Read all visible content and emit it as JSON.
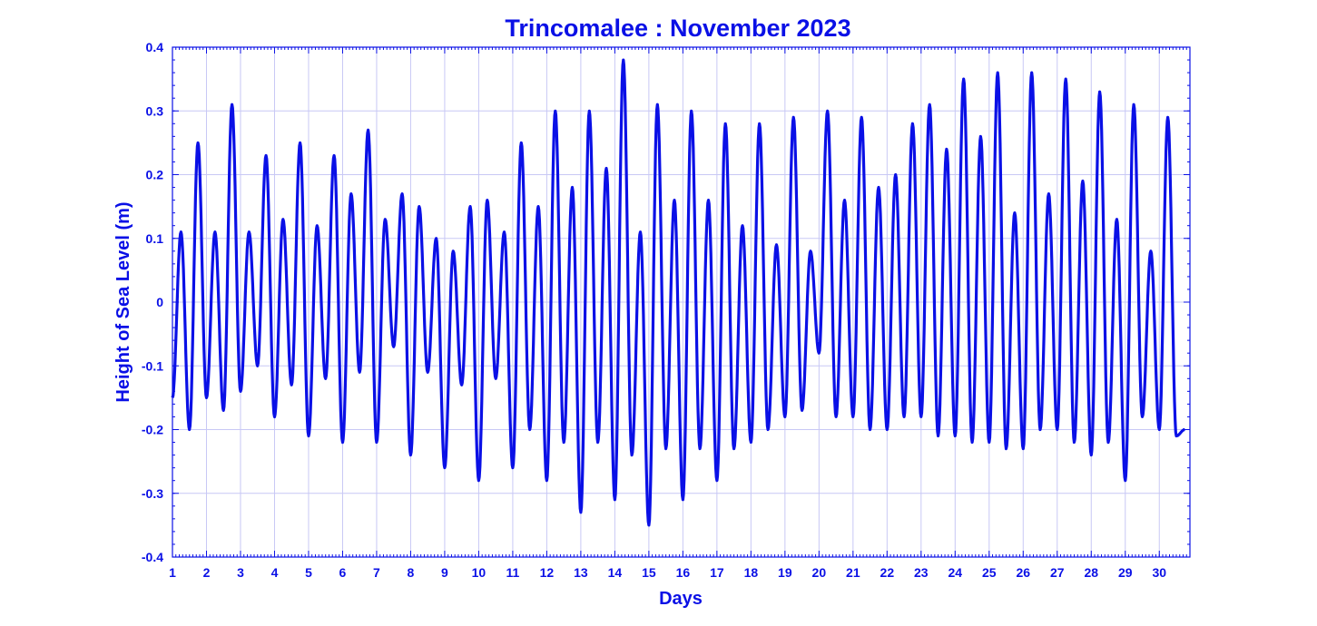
{
  "chart_data": {
    "type": "line",
    "title": "Trincomalee : November  2023",
    "xlabel": "Days",
    "ylabel": "Height of Sea Level (m)",
    "xlim": [
      1,
      30.9
    ],
    "ylim": [
      -0.4,
      0.4
    ],
    "xticks": [
      1,
      2,
      3,
      4,
      5,
      6,
      7,
      8,
      9,
      10,
      11,
      12,
      13,
      14,
      15,
      16,
      17,
      18,
      19,
      20,
      21,
      22,
      23,
      24,
      25,
      26,
      27,
      28,
      29,
      30
    ],
    "yticks": [
      -0.4,
      -0.3,
      -0.2,
      -0.1,
      0,
      0.1,
      0.2,
      0.3,
      0.4
    ],
    "ytick_labels": [
      "-0.4",
      "-0.3",
      "-0.2",
      "-0.1",
      "0",
      "0.1",
      "0.2",
      "0.3",
      "0.4"
    ],
    "grid": true,
    "line_color": "#0a10e6",
    "series": [
      {
        "x": [
          1.0,
          1.25,
          1.5,
          1.75,
          2.0,
          2.25,
          2.5,
          2.75,
          3.0,
          3.25,
          3.5,
          3.75,
          4.0,
          4.25,
          4.5,
          4.75,
          5.0,
          5.25,
          5.5,
          5.75,
          6.0,
          6.25,
          6.5,
          6.75,
          7.0,
          7.25,
          7.5,
          7.75,
          8.0,
          8.25,
          8.5,
          8.75,
          9.0,
          9.25,
          9.5,
          9.75,
          10.0,
          10.25,
          10.5,
          10.75,
          11.0,
          11.25,
          11.5,
          11.75,
          12.0,
          12.25,
          12.5,
          12.75,
          13.0,
          13.25,
          13.5,
          13.75,
          14.0,
          14.25,
          14.5,
          14.75,
          15.0,
          15.25,
          15.5,
          15.75,
          16.0,
          16.25,
          16.5,
          16.75,
          17.0,
          17.25,
          17.5,
          17.75,
          18.0,
          18.25,
          18.5,
          18.75,
          19.0,
          19.25,
          19.5,
          19.75,
          20.0,
          20.25,
          20.5,
          20.75,
          21.0,
          21.25,
          21.5,
          21.75,
          22.0,
          22.25,
          22.5,
          22.75,
          23.0,
          23.25,
          23.5,
          23.75,
          24.0,
          24.25,
          24.5,
          24.75,
          25.0,
          25.25,
          25.5,
          25.75,
          26.0,
          26.25,
          26.5,
          26.75,
          27.0,
          27.25,
          27.5,
          27.75,
          28.0,
          28.25,
          28.5,
          28.75,
          29.0,
          29.25,
          29.5,
          29.75,
          30.0,
          30.25,
          30.5,
          30.75
        ],
        "y": [
          -0.15,
          0.11,
          -0.2,
          0.25,
          -0.15,
          0.11,
          -0.17,
          0.31,
          -0.14,
          0.11,
          -0.1,
          0.23,
          -0.18,
          0.13,
          -0.13,
          0.25,
          -0.21,
          0.12,
          -0.12,
          0.23,
          -0.22,
          0.17,
          -0.11,
          0.27,
          -0.22,
          0.13,
          -0.07,
          0.17,
          -0.24,
          0.15,
          -0.11,
          0.1,
          -0.26,
          0.08,
          -0.13,
          0.15,
          -0.28,
          0.16,
          -0.12,
          0.11,
          -0.26,
          0.25,
          -0.2,
          0.15,
          -0.28,
          0.3,
          -0.22,
          0.18,
          -0.33,
          0.3,
          -0.22,
          0.21,
          -0.31,
          0.38,
          -0.24,
          0.11,
          -0.35,
          0.31,
          -0.23,
          0.16,
          -0.31,
          0.3,
          -0.23,
          0.16,
          -0.28,
          0.28,
          -0.23,
          0.12,
          -0.22,
          0.28,
          -0.2,
          0.09,
          -0.18,
          0.29,
          -0.17,
          0.08,
          -0.08,
          0.3,
          -0.18,
          0.16,
          -0.18,
          0.29,
          -0.2,
          0.18,
          -0.2,
          0.2,
          -0.18,
          0.28,
          -0.18,
          0.31,
          -0.21,
          0.24,
          -0.21,
          0.35,
          -0.22,
          0.26,
          -0.22,
          0.36,
          -0.23,
          0.14,
          -0.23,
          0.36,
          -0.2,
          0.17,
          -0.2,
          0.35,
          -0.22,
          0.19,
          -0.24,
          0.33,
          -0.22,
          0.13,
          -0.28,
          0.31,
          -0.18,
          0.08,
          -0.2,
          0.29,
          -0.21,
          -0.2
        ]
      }
    ]
  }
}
